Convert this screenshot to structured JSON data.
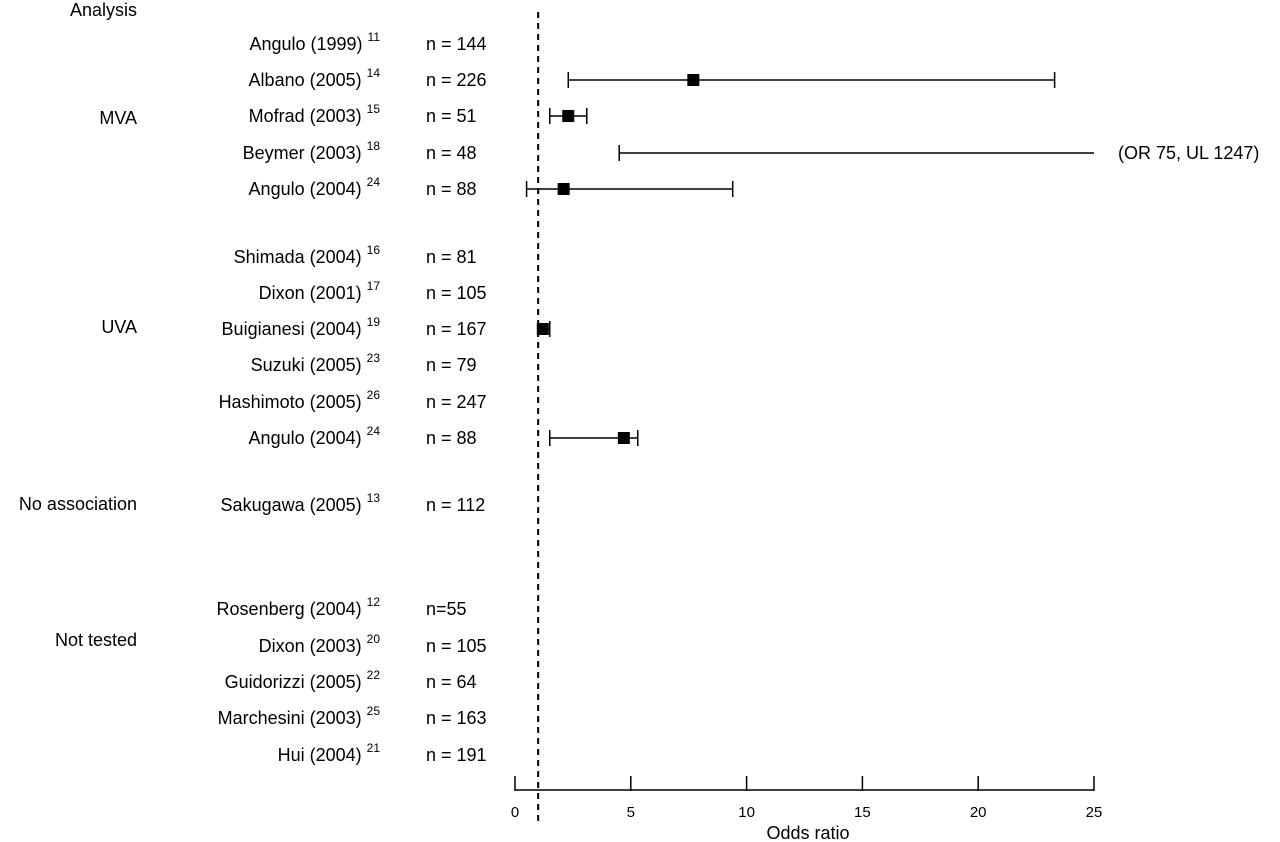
{
  "chart_data": {
    "type": "forest",
    "heading": "Analysis",
    "xlabel": "Odds ratio",
    "xlim": [
      0,
      25
    ],
    "xticks": [
      0,
      5,
      10,
      15,
      20,
      25
    ],
    "reference_line": 1,
    "groups": [
      {
        "name": "MVA",
        "rows": [
          {
            "study": "Angulo (1999)",
            "ref": "11",
            "n": "n = 144",
            "or": null,
            "lower": null,
            "upper": null
          },
          {
            "study": "Albano (2005)",
            "ref": "14",
            "n": "n = 226",
            "or": 7.7,
            "lower": 2.3,
            "upper": 23.3
          },
          {
            "study": "Mofrad (2003)",
            "ref": "15",
            "n": "n = 51",
            "or": 2.3,
            "lower": 1.5,
            "upper": 3.1
          },
          {
            "study": "Beymer (2003)",
            "ref": "18",
            "n": "n = 48",
            "or": null,
            "lower": 4.5,
            "upper": 25,
            "annotation": "(OR 75, UL 1247)"
          },
          {
            "study": "Angulo (2004)",
            "ref": "24",
            "n": "n = 88",
            "or": 2.1,
            "lower": 0.5,
            "upper": 9.4
          }
        ]
      },
      {
        "name": "UVA",
        "rows": [
          {
            "study": "Shimada (2004)",
            "ref": "16",
            "n": "n = 81",
            "or": null,
            "lower": null,
            "upper": null
          },
          {
            "study": "Dixon (2001)",
            "ref": "17",
            "n": "n = 105",
            "or": null,
            "lower": null,
            "upper": null
          },
          {
            "study": "Buigianesi (2004)",
            "ref": "19",
            "n": "n = 167",
            "or": 1.2,
            "lower": 1.0,
            "upper": 1.5
          },
          {
            "study": "Suzuki (2005)",
            "ref": "23",
            "n": "n = 79",
            "or": null,
            "lower": null,
            "upper": null
          },
          {
            "study": "Hashimoto (2005)",
            "ref": "26",
            "n": "n = 247",
            "or": null,
            "lower": null,
            "upper": null
          },
          {
            "study": "Angulo (2004)",
            "ref": "24",
            "n": "n = 88",
            "or": 4.7,
            "lower": 1.5,
            "upper": 5.3
          }
        ]
      },
      {
        "name": "No association",
        "rows": [
          {
            "study": "Sakugawa (2005)",
            "ref": "13",
            "n": "n = 112",
            "or": null,
            "lower": null,
            "upper": null
          }
        ]
      },
      {
        "name": "Not tested",
        "rows": [
          {
            "study": "Rosenberg (2004)",
            "ref": "12",
            "n": "n=55",
            "or": null,
            "lower": null,
            "upper": null
          },
          {
            "study": "Dixon (2003)",
            "ref": "20",
            "n": "n = 105",
            "or": null,
            "lower": null,
            "upper": null
          },
          {
            "study": "Guidorizzi (2005)",
            "ref": "22",
            "n": "n = 64",
            "or": null,
            "lower": null,
            "upper": null
          },
          {
            "study": "Marchesini (2003)",
            "ref": "25",
            "n": "n = 163",
            "or": null,
            "lower": null,
            "upper": null
          },
          {
            "study": "Hui (2004)",
            "ref": "21",
            "n": "n = 191",
            "or": null,
            "lower": null,
            "upper": null
          }
        ]
      }
    ]
  }
}
